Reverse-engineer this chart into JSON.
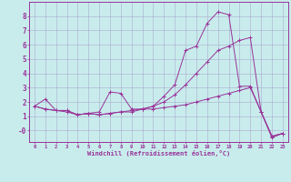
{
  "xlabel": "Windchill (Refroidissement éolien,°C)",
  "bg_color": "#c8ecec",
  "line_color": "#993399",
  "grid_color": "#aaaacc",
  "spine_color": "#993399",
  "x_ticks": [
    0,
    1,
    2,
    3,
    4,
    5,
    6,
    7,
    8,
    9,
    10,
    11,
    12,
    13,
    14,
    15,
    16,
    17,
    18,
    19,
    20,
    21,
    22,
    23
  ],
  "y_ticks": [
    0,
    1,
    2,
    3,
    4,
    5,
    6,
    7,
    8
  ],
  "y_tick_labels": [
    "-0",
    "1",
    "2",
    "3",
    "4",
    "5",
    "6",
    "7",
    "8"
  ],
  "ylim": [
    -0.8,
    9.0
  ],
  "xlim": [
    -0.5,
    23.5
  ],
  "series": [
    [
      1.7,
      2.2,
      1.4,
      1.3,
      1.1,
      1.2,
      1.3,
      2.7,
      2.6,
      1.5,
      1.5,
      1.7,
      2.4,
      3.2,
      5.6,
      5.9,
      7.5,
      8.3,
      8.1,
      3.1,
      3.1,
      1.3,
      -0.5,
      -0.2
    ],
    [
      1.7,
      1.5,
      1.4,
      1.4,
      1.1,
      1.2,
      1.1,
      1.2,
      1.3,
      1.3,
      1.5,
      1.7,
      2.0,
      2.5,
      3.2,
      4.0,
      4.8,
      5.6,
      5.9,
      6.3,
      6.5,
      1.3,
      -0.4,
      -0.2
    ],
    [
      1.7,
      1.5,
      1.4,
      1.4,
      1.1,
      1.2,
      1.1,
      1.2,
      1.3,
      1.4,
      1.5,
      1.5,
      1.6,
      1.7,
      1.8,
      2.0,
      2.2,
      2.4,
      2.6,
      2.8,
      3.0,
      1.3,
      -0.4,
      -0.2
    ]
  ]
}
